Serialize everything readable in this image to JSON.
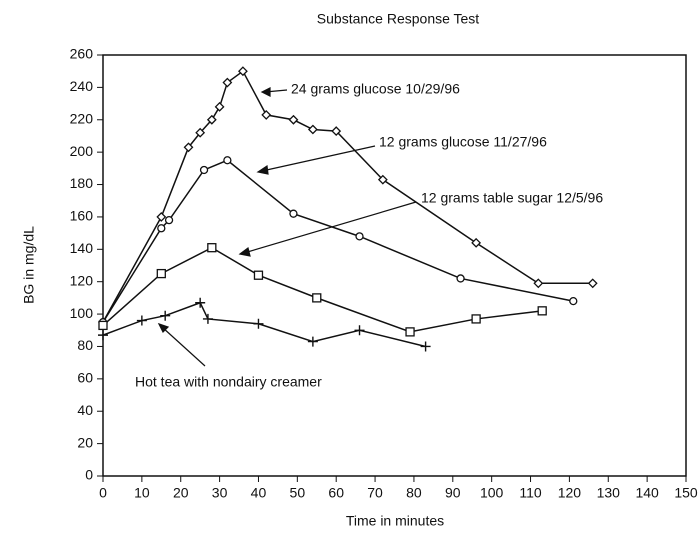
{
  "chart_data": {
    "type": "line",
    "title": "Substance Response Test",
    "xlabel": "Time in minutes",
    "ylabel": "BG in mg/dL",
    "xlim": [
      0,
      150
    ],
    "xticks": [
      0,
      10,
      20,
      30,
      40,
      50,
      60,
      70,
      80,
      90,
      100,
      110,
      120,
      130,
      140,
      150
    ],
    "ylim": [
      0,
      260
    ],
    "yticks": [
      0,
      20,
      40,
      60,
      80,
      100,
      120,
      140,
      160,
      180,
      200,
      220,
      240,
      260
    ],
    "series": [
      {
        "name": "24 grams glucose 10/29/96",
        "color": "#111",
        "marker": "diamond",
        "x": [
          0,
          15,
          22,
          25,
          28,
          30,
          32,
          36,
          42,
          49,
          54,
          60,
          72,
          96,
          112,
          126
        ],
        "values": [
          95,
          160,
          203,
          212,
          220,
          228,
          243,
          250,
          223,
          220,
          214,
          213,
          183,
          144,
          119,
          119
        ]
      },
      {
        "name": "12 grams glucose 11/27/96",
        "color": "#111",
        "marker": "circle",
        "x": [
          0,
          15,
          17,
          26,
          32,
          49,
          66,
          92,
          121
        ],
        "values": [
          95,
          153,
          158,
          189,
          195,
          162,
          148,
          122,
          108
        ]
      },
      {
        "name": "12 grams table sugar 12/5/96",
        "color": "#111",
        "marker": "square",
        "x": [
          0,
          15,
          28,
          40,
          55,
          79,
          96,
          113
        ],
        "values": [
          93,
          125,
          141,
          124,
          110,
          89,
          97,
          102
        ]
      },
      {
        "name": "Hot tea with nondairy creamer",
        "color": "#111",
        "marker": "plus",
        "x": [
          0,
          10,
          16,
          25,
          27,
          40,
          54,
          66,
          83
        ],
        "values": [
          87,
          96,
          99,
          107,
          97,
          94,
          83,
          90,
          80
        ]
      }
    ]
  }
}
